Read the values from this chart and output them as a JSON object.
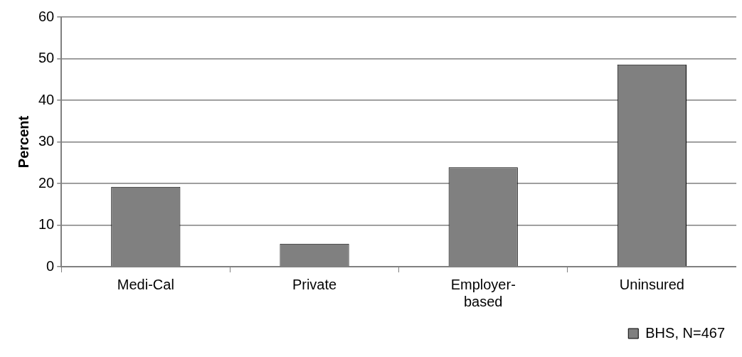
{
  "chart_data": {
    "type": "bar",
    "ylabel": "Percent",
    "categories": [
      "Medi-Cal",
      "Private",
      "Employer-based",
      "Uninsured"
    ],
    "series": [
      {
        "name": "BHS, N=467",
        "color": "#808080",
        "values": [
          19.2,
          5.5,
          23.9,
          48.6
        ]
      }
    ],
    "ylim": [
      0,
      60
    ],
    "yticks": [
      0,
      10,
      20,
      30,
      40,
      50,
      60
    ],
    "grid": "y",
    "legend": "bottom right"
  }
}
